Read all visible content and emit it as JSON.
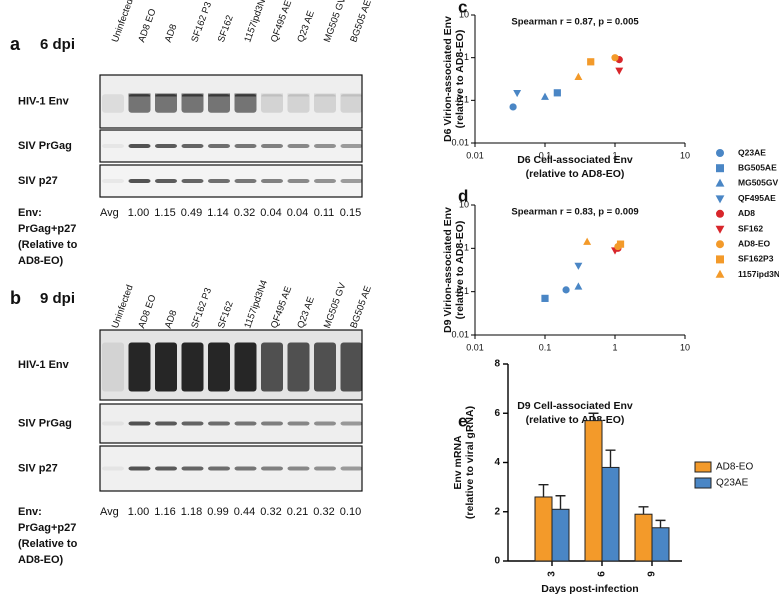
{
  "panel_a": {
    "letter": "a",
    "title": "6 dpi",
    "lanes": [
      {
        "label": "Uninfected",
        "color": "#000000"
      },
      {
        "label": "AD8 EO",
        "color": "#e8803a"
      },
      {
        "label": "AD8",
        "color": "#d8262b"
      },
      {
        "label": "SF162 P3",
        "color": "#e8803a"
      },
      {
        "label": "SF162",
        "color": "#d8262b"
      },
      {
        "label": "1157ipd3N4",
        "color": "#e8803a"
      },
      {
        "label": "QF495 AE",
        "color": "#4a86c5"
      },
      {
        "label": "Q23 AE",
        "color": "#4a86c5"
      },
      {
        "label": "MG505 GV",
        "color": "#4a86c5"
      },
      {
        "label": "BG505 AE",
        "color": "#4a86c5"
      }
    ],
    "rows": [
      "HIV-1 Env",
      "SIV PrGag",
      "SIV p27"
    ],
    "note": [
      "Env:",
      "PrGag+p27",
      "(Relative to",
      "AD8-EO)"
    ],
    "avg_label": "Avg",
    "avg": [
      "1.00",
      "1.15",
      "0.49",
      "1.14",
      "0.32",
      "0.04",
      "0.04",
      "0.11",
      "0.15"
    ]
  },
  "panel_b": {
    "letter": "b",
    "title": "9 dpi",
    "lanes": [
      {
        "label": "Uninfected",
        "color": "#000000"
      },
      {
        "label": "AD8 EO",
        "color": "#e8803a"
      },
      {
        "label": "AD8",
        "color": "#d8262b"
      },
      {
        "label": "SF162 P3",
        "color": "#e8803a"
      },
      {
        "label": "SF162",
        "color": "#d8262b"
      },
      {
        "label": "1157ipd3N4",
        "color": "#e8803a"
      },
      {
        "label": "QF495 AE",
        "color": "#4a86c5"
      },
      {
        "label": "Q23 AE",
        "color": "#4a86c5"
      },
      {
        "label": "MG505 GV",
        "color": "#4a86c5"
      },
      {
        "label": "BG505 AE",
        "color": "#4a86c5"
      }
    ],
    "rows": [
      "HIV-1 Env",
      "SIV PrGag",
      "SIV p27"
    ],
    "note": [
      "Env:",
      "PrGag+p27",
      "(Relative to",
      "AD8-EO)"
    ],
    "avg_label": "Avg",
    "avg": [
      "1.00",
      "1.16",
      "1.18",
      "0.99",
      "0.44",
      "0.32",
      "0.21",
      "0.32",
      "0.10"
    ]
  },
  "chart_data": [
    {
      "type": "scatter",
      "letter": "c",
      "annotation": "Spearman r = 0.87, p = 0.005",
      "ylabel": [
        "D6 Virion-associated Env",
        "(relative to AD8-EO)"
      ],
      "xlabel": [
        "D6 Cell-associated Env",
        "(relative to AD8-EO)"
      ],
      "xscale": "log",
      "yscale": "log",
      "xlim": [
        0.01,
        10
      ],
      "ylim": [
        0.01,
        10
      ],
      "xticks": [
        0.01,
        0.1,
        1,
        10
      ],
      "yticks": [
        0.01,
        0.1,
        1,
        10
      ],
      "legend": "right",
      "series": [
        {
          "name": "Q23AE",
          "color": "#4a86c5",
          "marker": "circle",
          "x": [
            0.035
          ],
          "values": [
            0.07
          ]
        },
        {
          "name": "BG505AE",
          "color": "#4a86c5",
          "marker": "square",
          "x": [
            0.15
          ],
          "values": [
            0.15
          ]
        },
        {
          "name": "MG505GV",
          "color": "#4a86c5",
          "marker": "triangle-up",
          "x": [
            0.1
          ],
          "values": [
            0.12
          ]
        },
        {
          "name": "QF495AE",
          "color": "#4a86c5",
          "marker": "triangle-down",
          "x": [
            0.04
          ],
          "values": [
            0.15
          ]
        },
        {
          "name": "AD8",
          "color": "#d8262b",
          "marker": "circle",
          "x": [
            1.15
          ],
          "values": [
            0.9
          ]
        },
        {
          "name": "SF162",
          "color": "#d8262b",
          "marker": "triangle-down",
          "x": [
            1.15
          ],
          "values": [
            0.5
          ]
        },
        {
          "name": "AD8-EO",
          "color": "#f39a2a",
          "marker": "circle",
          "x": [
            1.0
          ],
          "values": [
            1.0
          ]
        },
        {
          "name": "SF162P3",
          "color": "#f39a2a",
          "marker": "square",
          "x": [
            0.45
          ],
          "values": [
            0.8
          ]
        },
        {
          "name": "1157ipd3N4",
          "color": "#f39a2a",
          "marker": "triangle-up",
          "x": [
            0.3
          ],
          "values": [
            0.35
          ]
        }
      ]
    },
    {
      "type": "scatter",
      "letter": "d",
      "annotation": "Spearman r = 0.83, p = 0.009",
      "ylabel": [
        "D9 Virion-associated Env",
        "(relative to AD8-EO)"
      ],
      "xlabel": [
        "D9 Cell-associated Env",
        "(relative to AD8-EO)"
      ],
      "xscale": "log",
      "yscale": "log",
      "xlim": [
        0.01,
        10
      ],
      "ylim": [
        0.01,
        10
      ],
      "xticks": [
        0.01,
        0.1,
        1,
        10
      ],
      "yticks": [
        0.01,
        0.1,
        1,
        10
      ],
      "series": [
        {
          "color": "#4a86c5",
          "marker": "circle",
          "x": [
            0.2
          ],
          "values": [
            0.11
          ]
        },
        {
          "color": "#4a86c5",
          "marker": "square",
          "x": [
            0.1
          ],
          "values": [
            0.07
          ]
        },
        {
          "color": "#4a86c5",
          "marker": "triangle-up",
          "x": [
            0.3
          ],
          "values": [
            0.13
          ]
        },
        {
          "color": "#4a86c5",
          "marker": "triangle-down",
          "x": [
            0.3
          ],
          "values": [
            0.4
          ]
        },
        {
          "color": "#d8262b",
          "marker": "circle",
          "x": [
            1.1
          ],
          "values": [
            1.0
          ]
        },
        {
          "color": "#d8262b",
          "marker": "triangle-down",
          "x": [
            1.0
          ],
          "values": [
            0.9
          ]
        },
        {
          "color": "#f39a2a",
          "marker": "circle",
          "x": [
            1.1
          ],
          "values": [
            1.1
          ]
        },
        {
          "color": "#f39a2a",
          "marker": "square",
          "x": [
            1.2
          ],
          "values": [
            1.25
          ]
        },
        {
          "color": "#f39a2a",
          "marker": "triangle-up",
          "x": [
            0.4
          ],
          "values": [
            1.4
          ]
        }
      ]
    },
    {
      "type": "bar",
      "letter": "e",
      "ylabel": [
        "Env mRNA",
        "(relative to viral gRNA)"
      ],
      "xlabel": "Days post-infection",
      "categories": [
        "3",
        "6",
        "9"
      ],
      "ylim": [
        0,
        8
      ],
      "yticks": [
        0,
        2,
        4,
        6,
        8
      ],
      "legend": "right",
      "series": [
        {
          "name": "AD8-EO",
          "color": "#f39a2a",
          "values": [
            2.6,
            5.7,
            1.9
          ],
          "errors": [
            0.5,
            0.3,
            0.3
          ]
        },
        {
          "name": "Q23AE",
          "color": "#4a86c5",
          "values": [
            2.1,
            3.8,
            1.35
          ],
          "errors": [
            0.55,
            0.7,
            0.3
          ]
        }
      ]
    }
  ]
}
